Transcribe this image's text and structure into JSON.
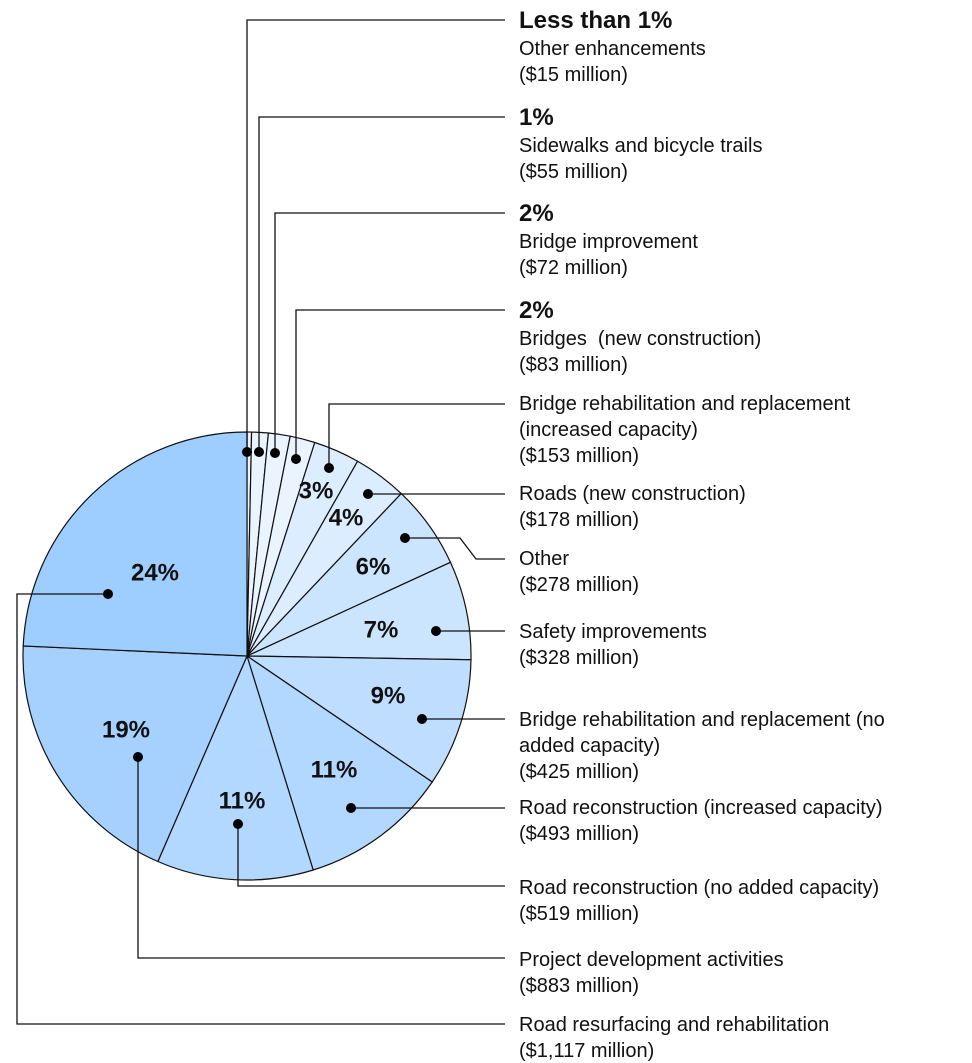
{
  "chart_data": {
    "type": "pie",
    "categories": [
      "Other enhancements",
      "Sidewalks and bicycle trails",
      "Bridge improvement",
      "Bridges  (new construction)",
      "Bridge rehabilitation and replacement (increased capacity)",
      "Roads (new construction)",
      "Other",
      "Safety improvements",
      "Bridge rehabilitation and replacement (no added capacity)",
      "Road reconstruction (increased capacity)",
      "Road reconstruction (no added capacity)",
      "Project development activities",
      "Road resurfacing and rehabilitation"
    ],
    "values": [
      15,
      55,
      72,
      83,
      153,
      178,
      278,
      328,
      425,
      493,
      519,
      883,
      1117
    ],
    "value_labels": [
      "($15 million)",
      "($55 million)",
      "($72 million)",
      "($83 million)",
      "($153 million)",
      "($178 million)",
      "($278 million)",
      "($328 million)",
      "($425 million)",
      "($493 million)",
      "($519 million)",
      "($883 million)",
      "($1,117 million)"
    ],
    "percent_labels": [
      "Less than 1%",
      "1%",
      "2%",
      "2%",
      "3%",
      "4%",
      "6%",
      "7%",
      "9%",
      "11%",
      "11%",
      "19%",
      "24%"
    ],
    "colors": [
      "#e9f4ff",
      "#e9f4ff",
      "#e9f4ff",
      "#e9f4ff",
      "#dcedff",
      "#dcedff",
      "#cce5ff",
      "#cce5ff",
      "#bfdeff",
      "#b3d8ff",
      "#b3d8ff",
      "#a6d1ff",
      "#9ecdff"
    ]
  }
}
